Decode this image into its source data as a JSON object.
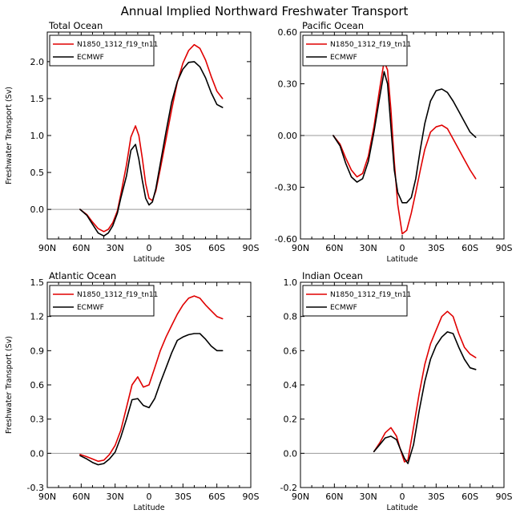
{
  "figure": {
    "title": "Annual Implied Northward Freshwater Transport"
  },
  "chart_data": [
    {
      "type": "line",
      "title": "Total Ocean",
      "xlabel": "Latitude",
      "ylabel": "Freshwater Transport (Sv)",
      "xlim": [
        90,
        -90
      ],
      "ylim": [
        -0.4,
        2.4
      ],
      "xticks": [
        90,
        60,
        30,
        0,
        -30,
        -60,
        -90
      ],
      "xtick_labels": [
        "90N",
        "60N",
        "30N",
        "0",
        "30S",
        "60S",
        "90S"
      ],
      "yticks": [
        0.0,
        0.5,
        1.0,
        1.5,
        2.0
      ],
      "ytick_labels": [
        "0.0",
        "0.5",
        "1.0",
        "1.5",
        "2.0"
      ],
      "reference_line": 0,
      "legend": [
        "N1850_1312_f19_tn11",
        "ECMWF"
      ],
      "series": [
        {
          "name": "N1850_1312_f19_tn11",
          "color": "#e00000",
          "x": [
            61,
            55,
            50,
            45,
            40,
            36,
            32,
            28,
            25,
            20,
            16,
            12,
            9,
            6,
            3,
            0,
            -3,
            -6,
            -10,
            -15,
            -20,
            -25,
            -30,
            -35,
            -40,
            -45,
            -50,
            -55,
            -60,
            -65
          ],
          "y": [
            0.0,
            -0.07,
            -0.17,
            -0.26,
            -0.3,
            -0.27,
            -0.18,
            -0.02,
            0.2,
            0.6,
            0.98,
            1.13,
            1.0,
            0.7,
            0.35,
            0.15,
            0.12,
            0.25,
            0.55,
            0.95,
            1.35,
            1.72,
            1.98,
            2.15,
            2.23,
            2.18,
            2.02,
            1.8,
            1.6,
            1.5
          ]
        },
        {
          "name": "ECMWF",
          "color": "#000000",
          "x": [
            61,
            55,
            50,
            45,
            40,
            36,
            32,
            28,
            25,
            20,
            16,
            12,
            9,
            6,
            3,
            0,
            -3,
            -6,
            -10,
            -15,
            -20,
            -25,
            -30,
            -35,
            -40,
            -45,
            -50,
            -55,
            -60,
            -65
          ],
          "y": [
            0.0,
            -0.08,
            -0.2,
            -0.32,
            -0.36,
            -0.32,
            -0.22,
            -0.05,
            0.15,
            0.45,
            0.8,
            0.88,
            0.68,
            0.4,
            0.15,
            0.06,
            0.1,
            0.28,
            0.62,
            1.05,
            1.45,
            1.73,
            1.9,
            1.99,
            2.0,
            1.93,
            1.78,
            1.58,
            1.42,
            1.38
          ]
        }
      ]
    },
    {
      "type": "line",
      "title": "Pacific Ocean",
      "xlabel": "Latitude",
      "ylabel": "",
      "xlim": [
        90,
        -90
      ],
      "ylim": [
        -0.6,
        0.6
      ],
      "xticks": [
        90,
        60,
        30,
        0,
        -30,
        -60,
        -90
      ],
      "xtick_labels": [
        "90N",
        "60N",
        "30N",
        "0",
        "30S",
        "60S",
        "90S"
      ],
      "yticks": [
        -0.6,
        -0.3,
        0.0,
        0.3,
        0.6
      ],
      "ytick_labels": [
        "-0.60",
        "-0.30",
        "0.00",
        "0.30",
        "0.60"
      ],
      "reference_line": 0,
      "legend": [
        "N1850_1312_f19_tn11",
        "ECMWF"
      ],
      "series": [
        {
          "name": "N1850_1312_f19_tn11",
          "color": "#e00000",
          "x": [
            61,
            55,
            50,
            45,
            40,
            35,
            30,
            25,
            20,
            16,
            13,
            10,
            7,
            4,
            0,
            -4,
            -8,
            -12,
            -16,
            -20,
            -25,
            -30,
            -35,
            -40,
            -45,
            -50,
            -55,
            -60,
            -65
          ],
          "y": [
            0.0,
            -0.05,
            -0.13,
            -0.2,
            -0.24,
            -0.22,
            -0.12,
            0.05,
            0.27,
            0.43,
            0.38,
            0.15,
            -0.15,
            -0.4,
            -0.57,
            -0.55,
            -0.45,
            -0.33,
            -0.2,
            -0.08,
            0.02,
            0.05,
            0.06,
            0.04,
            -0.02,
            -0.08,
            -0.14,
            -0.2,
            -0.25
          ]
        },
        {
          "name": "ECMWF",
          "color": "#000000",
          "x": [
            61,
            55,
            50,
            45,
            40,
            35,
            30,
            25,
            20,
            16,
            13,
            10,
            7,
            4,
            0,
            -4,
            -8,
            -12,
            -16,
            -20,
            -25,
            -30,
            -35,
            -40,
            -45,
            -50,
            -55,
            -60,
            -65
          ],
          "y": [
            0.0,
            -0.06,
            -0.16,
            -0.24,
            -0.27,
            -0.25,
            -0.15,
            0.02,
            0.22,
            0.37,
            0.3,
            0.05,
            -0.2,
            -0.33,
            -0.39,
            -0.39,
            -0.36,
            -0.25,
            -0.08,
            0.07,
            0.2,
            0.26,
            0.27,
            0.25,
            0.2,
            0.14,
            0.08,
            0.02,
            -0.01
          ]
        }
      ]
    },
    {
      "type": "line",
      "title": "Atlantic Ocean",
      "xlabel": "Latitude",
      "ylabel": "Freshwater Transport (Sv)",
      "xlim": [
        90,
        -90
      ],
      "ylim": [
        -0.3,
        1.5
      ],
      "xticks": [
        90,
        60,
        30,
        0,
        -30,
        -60,
        -90
      ],
      "xtick_labels": [
        "90N",
        "60N",
        "30N",
        "0",
        "30S",
        "60S",
        "90S"
      ],
      "yticks": [
        -0.3,
        0.0,
        0.3,
        0.6,
        0.9,
        1.2,
        1.5
      ],
      "ytick_labels": [
        "-0.3",
        "0.0",
        "0.3",
        "0.6",
        "0.9",
        "1.2",
        "1.5"
      ],
      "reference_line": 0,
      "legend": [
        "N1850_1312_f19_tn11",
        "ECMWF"
      ],
      "series": [
        {
          "name": "N1850_1312_f19_tn11",
          "color": "#e00000",
          "x": [
            61,
            55,
            50,
            45,
            40,
            35,
            30,
            25,
            20,
            15,
            10,
            5,
            0,
            -5,
            -10,
            -15,
            -20,
            -25,
            -30,
            -35,
            -40,
            -45,
            -50,
            -55,
            -60,
            -65
          ],
          "y": [
            -0.01,
            -0.03,
            -0.05,
            -0.07,
            -0.06,
            -0.01,
            0.07,
            0.2,
            0.4,
            0.6,
            0.67,
            0.58,
            0.6,
            0.75,
            0.9,
            1.02,
            1.12,
            1.22,
            1.3,
            1.36,
            1.38,
            1.36,
            1.3,
            1.25,
            1.2,
            1.18
          ]
        },
        {
          "name": "ECMWF",
          "color": "#000000",
          "x": [
            61,
            55,
            50,
            45,
            40,
            35,
            30,
            25,
            20,
            15,
            10,
            5,
            0,
            -5,
            -10,
            -15,
            -20,
            -25,
            -30,
            -35,
            -40,
            -45,
            -50,
            -55,
            -60,
            -65
          ],
          "y": [
            -0.02,
            -0.05,
            -0.08,
            -0.1,
            -0.09,
            -0.05,
            0.01,
            0.14,
            0.3,
            0.47,
            0.48,
            0.42,
            0.4,
            0.48,
            0.62,
            0.75,
            0.88,
            0.99,
            1.02,
            1.04,
            1.05,
            1.05,
            1.0,
            0.94,
            0.9,
            0.9
          ]
        }
      ]
    },
    {
      "type": "line",
      "title": "Indian Ocean",
      "xlabel": "Latitude",
      "ylabel": "",
      "xlim": [
        90,
        -90
      ],
      "ylim": [
        -0.2,
        1.0
      ],
      "xticks": [
        90,
        60,
        30,
        0,
        -30,
        -60,
        -90
      ],
      "xtick_labels": [
        "90N",
        "60N",
        "30N",
        "0",
        "30S",
        "60S",
        "90S"
      ],
      "yticks": [
        -0.2,
        0.0,
        0.2,
        0.4,
        0.6,
        0.8,
        1.0
      ],
      "ytick_labels": [
        "-0.2",
        "0.0",
        "0.2",
        "0.4",
        "0.6",
        "0.8",
        "1.0"
      ],
      "reference_line": 0,
      "legend": [
        "N1850_1312_f19_tn11",
        "ECMWF"
      ],
      "series": [
        {
          "name": "N1850_1312_f19_tn11",
          "color": "#e00000",
          "x": [
            25,
            20,
            15,
            10,
            5,
            2,
            -2,
            -5,
            -10,
            -15,
            -20,
            -25,
            -30,
            -35,
            -40,
            -45,
            -50,
            -55,
            -60,
            -65
          ],
          "y": [
            0.01,
            0.06,
            0.12,
            0.15,
            0.1,
            0.03,
            -0.05,
            -0.04,
            0.15,
            0.35,
            0.52,
            0.64,
            0.72,
            0.8,
            0.83,
            0.8,
            0.7,
            0.62,
            0.58,
            0.56
          ]
        },
        {
          "name": "ECMWF",
          "color": "#000000",
          "x": [
            25,
            20,
            15,
            10,
            5,
            2,
            -2,
            -5,
            -10,
            -15,
            -20,
            -25,
            -30,
            -35,
            -40,
            -45,
            -50,
            -55,
            -60,
            -65
          ],
          "y": [
            0.01,
            0.05,
            0.09,
            0.1,
            0.08,
            0.03,
            -0.03,
            -0.06,
            0.05,
            0.25,
            0.42,
            0.55,
            0.63,
            0.68,
            0.71,
            0.7,
            0.62,
            0.55,
            0.5,
            0.49
          ]
        }
      ]
    }
  ]
}
